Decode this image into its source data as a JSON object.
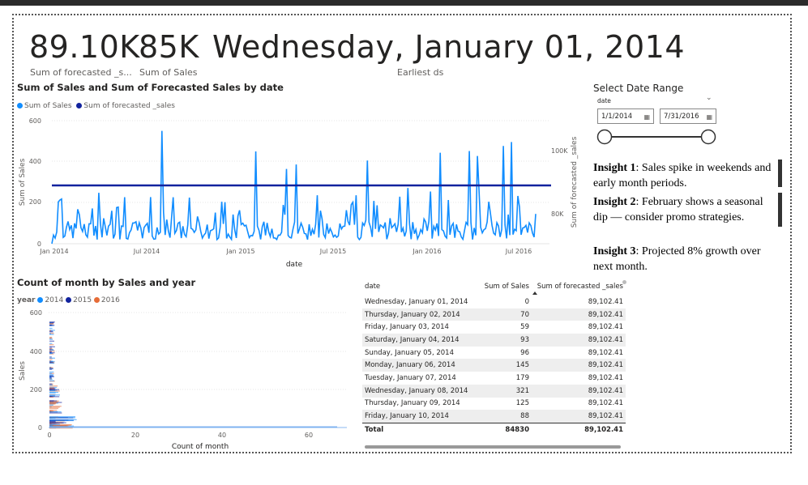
{
  "kpis": {
    "forecast_value": "89.10K",
    "sales_value": "85K",
    "earliest_date": "Wednesday, January 01, 2014",
    "forecast_label": "Sum of forecasted _s...",
    "sales_label": "Sum of Sales",
    "earliest_label": "Earliest ds"
  },
  "line_chart": {
    "title": "Sum of Sales and Sum of Forecasted Sales by date",
    "legend": [
      {
        "label": "Sum of Sales",
        "color": "#118DFF"
      },
      {
        "label": "Sum of forecasted _sales",
        "color": "#12239E"
      }
    ],
    "ylabel": "Sum of Sales",
    "y2label": "Sum of forecasted _sales",
    "xlabel": "date",
    "yticks": [
      "600",
      "400",
      "200",
      "0"
    ],
    "y2ticks": [
      "100K",
      "80K"
    ],
    "xticks": [
      "Jan 2014",
      "Jul 2014",
      "Jan 2015",
      "Jul 2015",
      "Jan 2016",
      "Jul 2016"
    ]
  },
  "scatter_chart": {
    "title": "Count of month by Sales and year",
    "legend_title": "year",
    "legend": [
      {
        "label": "2014",
        "color": "#118DFF"
      },
      {
        "label": "2015",
        "color": "#12239E"
      },
      {
        "label": "2016",
        "color": "#E66C37"
      }
    ],
    "ylabel": "Sales",
    "xlabel": "Count of month",
    "yticks": [
      "600",
      "400",
      "200",
      "0"
    ],
    "xticks": [
      "0",
      "20",
      "40",
      "60"
    ]
  },
  "slicer": {
    "title": "Select Date Range",
    "field": "date",
    "start": "1/1/2014",
    "end": "7/31/2016"
  },
  "insights": [
    {
      "head": "Insight 1",
      "text": ": Sales spike in weekends and early month periods."
    },
    {
      "head": "Insight 2",
      "text": ": February shows a seasonal dip — consider promo strategies."
    },
    {
      "head": "Insight 3",
      "text": ": Projected 8% growth over next month."
    }
  ],
  "table": {
    "columns": [
      "date",
      "Sum of Sales",
      "Sum of forecasted _sales"
    ],
    "rows": [
      [
        "Wednesday, January 01, 2014",
        "0",
        "89,102.41"
      ],
      [
        "Thursday, January 02, 2014",
        "70",
        "89,102.41"
      ],
      [
        "Friday, January 03, 2014",
        "59",
        "89,102.41"
      ],
      [
        "Saturday, January 04, 2014",
        "93",
        "89,102.41"
      ],
      [
        "Sunday, January 05, 2014",
        "96",
        "89,102.41"
      ],
      [
        "Monday, January 06, 2014",
        "145",
        "89,102.41"
      ],
      [
        "Tuesday, January 07, 2014",
        "179",
        "89,102.41"
      ],
      [
        "Wednesday, January 08, 2014",
        "321",
        "89,102.41"
      ],
      [
        "Thursday, January 09, 2014",
        "125",
        "89,102.41"
      ],
      [
        "Friday, January 10, 2014",
        "88",
        "89,102.41"
      ]
    ],
    "total": [
      "Total",
      "84830",
      "89,102.41"
    ]
  }
}
